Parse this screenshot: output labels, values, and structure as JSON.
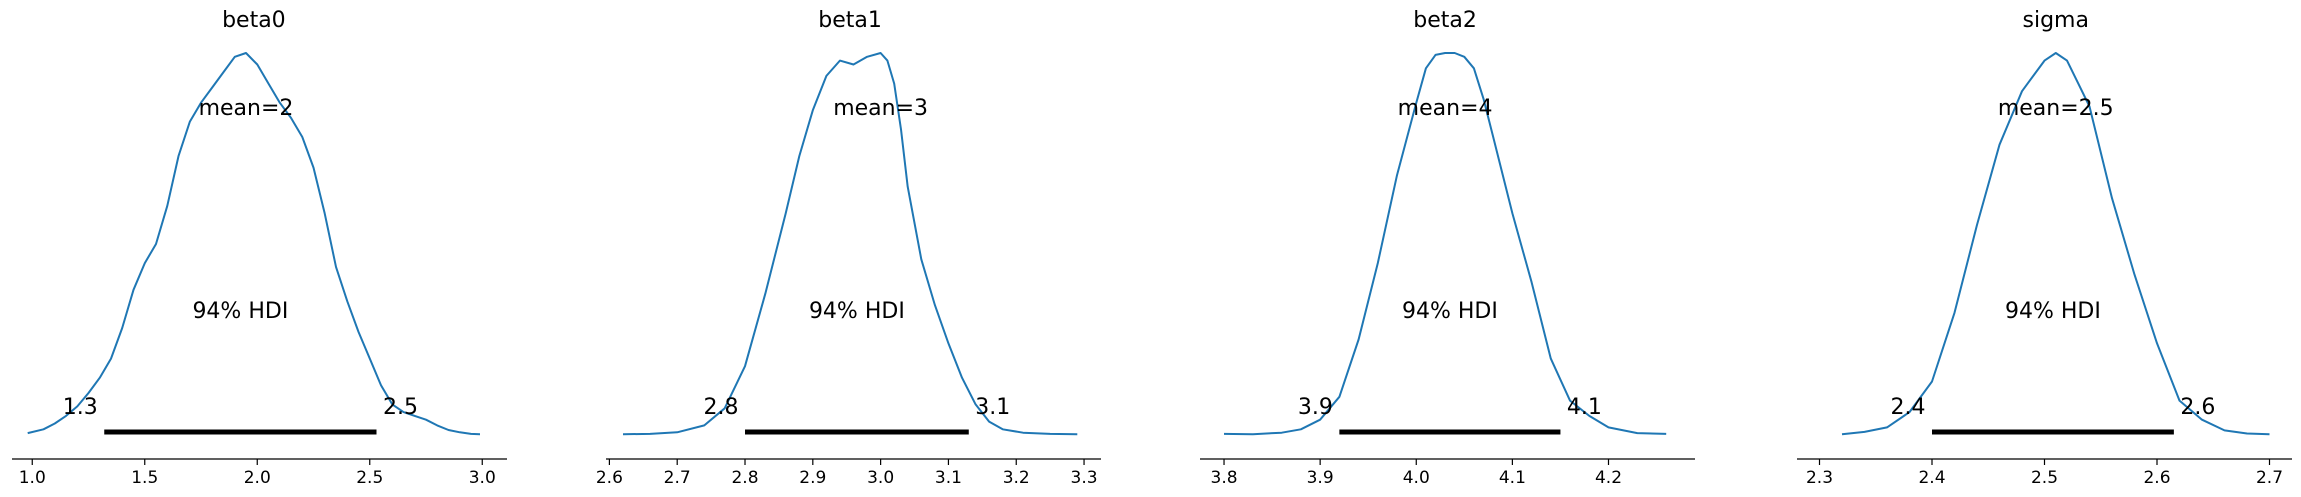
{
  "chart_data": [
    {
      "type": "area",
      "title": "beta0",
      "mean_label": "mean=2",
      "hdi_label": "94% HDI",
      "hdi": [
        1.32,
        2.53
      ],
      "hdi_low_label": "1.3",
      "hdi_high_label": "2.5",
      "xlim": [
        0.91,
        3.11
      ],
      "xticks": [
        1.0,
        1.5,
        2.0,
        2.5,
        3.0
      ],
      "xtick_labels": [
        "1.0",
        "1.5",
        "2.0",
        "2.5",
        "3.0"
      ],
      "density": {
        "x": [
          0.98,
          1.05,
          1.1,
          1.15,
          1.2,
          1.25,
          1.3,
          1.35,
          1.4,
          1.45,
          1.5,
          1.55,
          1.6,
          1.65,
          1.7,
          1.75,
          1.8,
          1.85,
          1.9,
          1.95,
          2.0,
          2.05,
          2.1,
          2.15,
          2.2,
          2.25,
          2.3,
          2.35,
          2.4,
          2.45,
          2.5,
          2.55,
          2.6,
          2.65,
          2.7,
          2.75,
          2.8,
          2.85,
          2.9,
          2.95,
          2.99
        ],
        "y": [
          0.005,
          0.015,
          0.03,
          0.05,
          0.075,
          0.11,
          0.15,
          0.2,
          0.28,
          0.38,
          0.45,
          0.5,
          0.6,
          0.73,
          0.82,
          0.87,
          0.91,
          0.95,
          0.99,
          1.0,
          0.97,
          0.92,
          0.87,
          0.83,
          0.78,
          0.7,
          0.58,
          0.44,
          0.35,
          0.27,
          0.2,
          0.13,
          0.08,
          0.06,
          0.05,
          0.04,
          0.025,
          0.013,
          0.007,
          0.003,
          0.002
        ]
      }
    },
    {
      "type": "area",
      "title": "beta1",
      "mean_label": "mean=3",
      "hdi_label": "94% HDI",
      "hdi": [
        2.8,
        3.13
      ],
      "hdi_low_label": "2.8",
      "hdi_high_label": "3.1",
      "xlim": [
        2.595,
        3.325
      ],
      "xticks": [
        2.6,
        2.7,
        2.8,
        2.9,
        3.0,
        3.1,
        3.2,
        3.3
      ],
      "xtick_labels": [
        "2.6",
        "2.7",
        "2.8",
        "2.9",
        "3.0",
        "3.1",
        "3.2",
        "3.3"
      ],
      "density": {
        "x": [
          2.62,
          2.66,
          2.7,
          2.74,
          2.77,
          2.8,
          2.83,
          2.86,
          2.88,
          2.9,
          2.92,
          2.94,
          2.96,
          2.98,
          3.0,
          3.01,
          3.02,
          3.03,
          3.04,
          3.06,
          3.08,
          3.1,
          3.12,
          3.14,
          3.16,
          3.18,
          3.21,
          3.25,
          3.29
        ],
        "y": [
          0.002,
          0.003,
          0.007,
          0.025,
          0.07,
          0.18,
          0.37,
          0.58,
          0.73,
          0.85,
          0.94,
          0.98,
          0.97,
          0.99,
          1.0,
          0.98,
          0.92,
          0.8,
          0.65,
          0.46,
          0.34,
          0.24,
          0.15,
          0.08,
          0.035,
          0.015,
          0.006,
          0.003,
          0.002
        ]
      }
    },
    {
      "type": "area",
      "title": "beta2",
      "mean_label": "mean=4",
      "hdi_label": "94% HDI",
      "hdi": [
        3.92,
        4.15
      ],
      "hdi_low_label": "3.9",
      "hdi_high_label": "4.1",
      "xlim": [
        3.775,
        4.29
      ],
      "xticks": [
        3.8,
        3.9,
        4.0,
        4.1,
        4.2
      ],
      "xtick_labels": [
        "3.8",
        "3.9",
        "4.0",
        "4.1",
        "4.2"
      ],
      "density": {
        "x": [
          3.8,
          3.83,
          3.86,
          3.88,
          3.9,
          3.92,
          3.94,
          3.96,
          3.98,
          4.0,
          4.01,
          4.02,
          4.03,
          4.04,
          4.05,
          4.06,
          4.07,
          4.08,
          4.1,
          4.12,
          4.14,
          4.16,
          4.18,
          4.2,
          4.23,
          4.26
        ],
        "y": [
          0.003,
          0.002,
          0.006,
          0.015,
          0.04,
          0.1,
          0.25,
          0.45,
          0.68,
          0.87,
          0.96,
          0.995,
          1.0,
          1.0,
          0.99,
          0.96,
          0.88,
          0.78,
          0.58,
          0.4,
          0.2,
          0.09,
          0.05,
          0.02,
          0.005,
          0.003
        ]
      }
    },
    {
      "type": "area",
      "title": "sigma",
      "mean_label": "mean=2.5",
      "hdi_label": "94% HDI",
      "hdi": [
        2.4,
        2.615
      ],
      "hdi_low_label": "2.4",
      "hdi_high_label": "2.6",
      "xlim": [
        2.28,
        2.72
      ],
      "xticks": [
        2.3,
        2.4,
        2.5,
        2.6,
        2.7
      ],
      "xtick_labels": [
        "2.3",
        "2.4",
        "2.5",
        "2.6",
        "2.7"
      ],
      "density": {
        "x": [
          2.32,
          2.34,
          2.36,
          2.38,
          2.4,
          2.42,
          2.44,
          2.46,
          2.48,
          2.5,
          2.51,
          2.52,
          2.53,
          2.54,
          2.56,
          2.58,
          2.6,
          2.62,
          2.64,
          2.66,
          2.68,
          2.7
        ],
        "y": [
          0.002,
          0.008,
          0.02,
          0.06,
          0.14,
          0.32,
          0.55,
          0.76,
          0.9,
          0.98,
          1.0,
          0.98,
          0.92,
          0.86,
          0.62,
          0.42,
          0.24,
          0.09,
          0.04,
          0.012,
          0.004,
          0.002
        ]
      }
    }
  ],
  "colors": {
    "density_line": "#1f77b4",
    "hdi_bar": "#000000",
    "axis": "#000000"
  }
}
